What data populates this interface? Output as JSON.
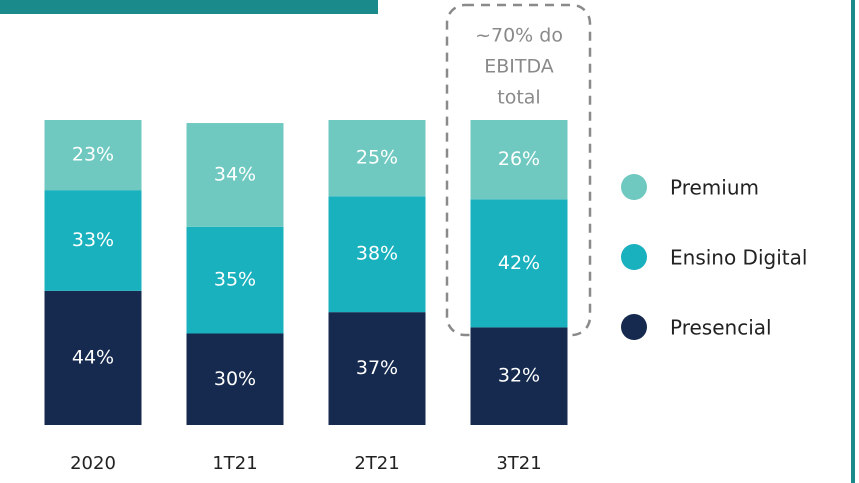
{
  "chart_data": {
    "type": "stacked_bar",
    "categories": [
      "2020",
      "1T21",
      "2T21",
      "3T21"
    ],
    "series": [
      {
        "name": "Presencial",
        "color": "#152a4e",
        "values": [
          44,
          30,
          37,
          32
        ],
        "value_labels": [
          "44%",
          "30%",
          "37%",
          "32%"
        ]
      },
      {
        "name": "Ensino Digital",
        "color": "#1ab1bf",
        "values": [
          33,
          35,
          38,
          42
        ],
        "value_labels": [
          "33%",
          "35%",
          "38%",
          "42%"
        ]
      },
      {
        "name": "Premium",
        "color": "#6fc9c0",
        "values": [
          23,
          34,
          25,
          26
        ],
        "value_labels": [
          "23%",
          "34%",
          "25%",
          "26%"
        ]
      }
    ],
    "ylim": [
      0,
      100
    ],
    "annotation": [
      "~70% do",
      "EBITDA",
      "total"
    ],
    "legend": "right"
  }
}
